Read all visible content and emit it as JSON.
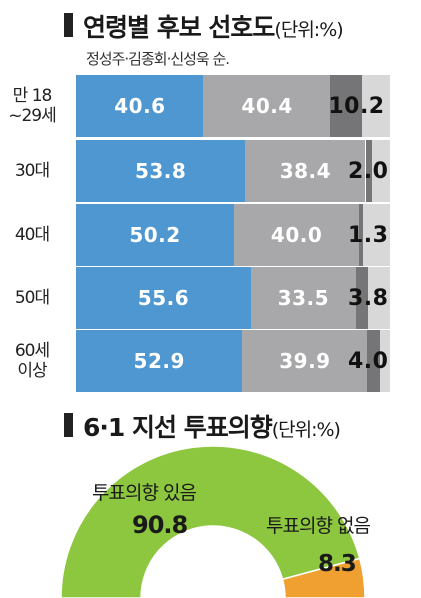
{
  "title1": {
    "main": "연령별 후보 선호도",
    "unit": "(단위:%)"
  },
  "subtitle": "정성주·김종회·신성욱 순.",
  "title2": {
    "main": "6·1 지선 투표의향",
    "unit": "(단위:%)"
  },
  "colors": {
    "first": "#4f97d0",
    "second": "#a8a8aa",
    "third": "#757577",
    "remainder": "#d8d8d8",
    "gauge_yes": "#8dc63f",
    "gauge_no": "#f0a030"
  },
  "chart_data": [
    {
      "type": "bar",
      "stacked": true,
      "orientation": "horizontal",
      "title": "연령별 후보 선호도",
      "unit": "%",
      "categories": [
        "만 18\n~29세",
        "30대",
        "40대",
        "50대",
        "60세\n이상"
      ],
      "series": [
        {
          "name": "정성주",
          "values": [
            40.6,
            53.8,
            50.2,
            55.6,
            52.9
          ]
        },
        {
          "name": "김종회",
          "values": [
            40.4,
            38.4,
            40.0,
            33.5,
            39.9
          ]
        },
        {
          "name": "신성욱",
          "values": [
            10.2,
            2.0,
            1.3,
            3.8,
            4.0
          ]
        }
      ]
    },
    {
      "type": "pie",
      "style": "semi-donut",
      "title": "6·1 지선 투표의향",
      "unit": "%",
      "labels": [
        "투표의향 있음",
        "투표의향 없음"
      ],
      "values": [
        90.8,
        8.3
      ]
    }
  ]
}
